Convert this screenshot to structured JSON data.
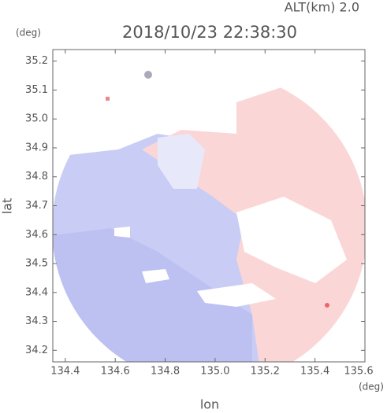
{
  "title": "2018/10/23 22:38:30",
  "altitude_label": "ALT(km) 2.0",
  "chart_data": {
    "type": "map",
    "x_label": "lon",
    "y_label": "lat",
    "x_unit": "(deg)",
    "y_unit": "(deg)",
    "xlim": [
      134.35,
      135.6
    ],
    "xticks": [
      134.4,
      134.6,
      134.8,
      135.0,
      135.2,
      135.4,
      135.6
    ],
    "ylim": [
      34.16,
      35.24
    ],
    "yticks": [
      34.2,
      34.3,
      34.4,
      34.5,
      34.6,
      34.7,
      34.8,
      34.9,
      35.0,
      35.1,
      35.2
    ]
  }
}
